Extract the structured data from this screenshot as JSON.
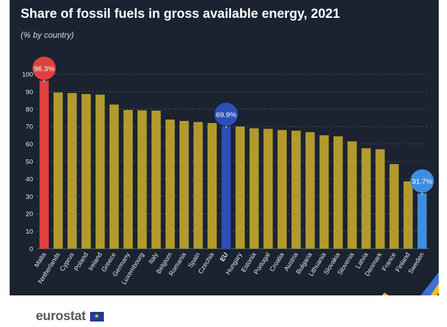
{
  "title": "Share of fossil fuels in gross available energy, 2021",
  "subtitle": "(% by country)",
  "brand": {
    "name": "eurostat",
    "logo_icon": "eu-flag-icon"
  },
  "colors": {
    "default": "#b29a2e",
    "highlight_max": "#e04040",
    "eu": "#2c50b8",
    "highlight_min": "#3d8ee0",
    "background": "#1b2230",
    "grid": "#5a6270"
  },
  "chart_data": {
    "type": "bar",
    "title": "Share of fossil fuels in gross available energy, 2021",
    "subtitle": "(% by country)",
    "xlabel": "",
    "ylabel": "",
    "ylim": [
      0,
      100
    ],
    "yticks": [
      0,
      10,
      20,
      30,
      40,
      50,
      60,
      70,
      80,
      90,
      100
    ],
    "grid": true,
    "categories": [
      "Malta",
      "Netherlands",
      "Cyprus",
      "Poland",
      "Ireland",
      "Greece",
      "Germany",
      "Luxembourg",
      "Italy",
      "Belgium",
      "Romania",
      "Spain",
      "Czechia",
      "EU",
      "Hungary",
      "Estonia",
      "Portugal",
      "Croatia",
      "Austria",
      "Bulgaria",
      "Lithuania",
      "Slovakia",
      "Slovenia",
      "Latvia",
      "Denmark",
      "France",
      "Finland",
      "Sweden"
    ],
    "values": [
      96.3,
      89.5,
      89.2,
      88.6,
      88.3,
      82.6,
      79.5,
      79.3,
      79.1,
      74.0,
      73.2,
      72.6,
      72.0,
      69.9,
      70.0,
      69.0,
      68.7,
      68.0,
      67.6,
      66.8,
      65.0,
      64.4,
      61.5,
      57.6,
      57.0,
      48.5,
      38.6,
      31.7
    ],
    "highlights": [
      {
        "category": "Malta",
        "label": "96.3%",
        "color": "#e04040"
      },
      {
        "category": "EU",
        "label": "69.9%",
        "color": "#2c50b8"
      },
      {
        "category": "Sweden",
        "label": "31.7%",
        "color": "#3d8ee0"
      }
    ]
  }
}
